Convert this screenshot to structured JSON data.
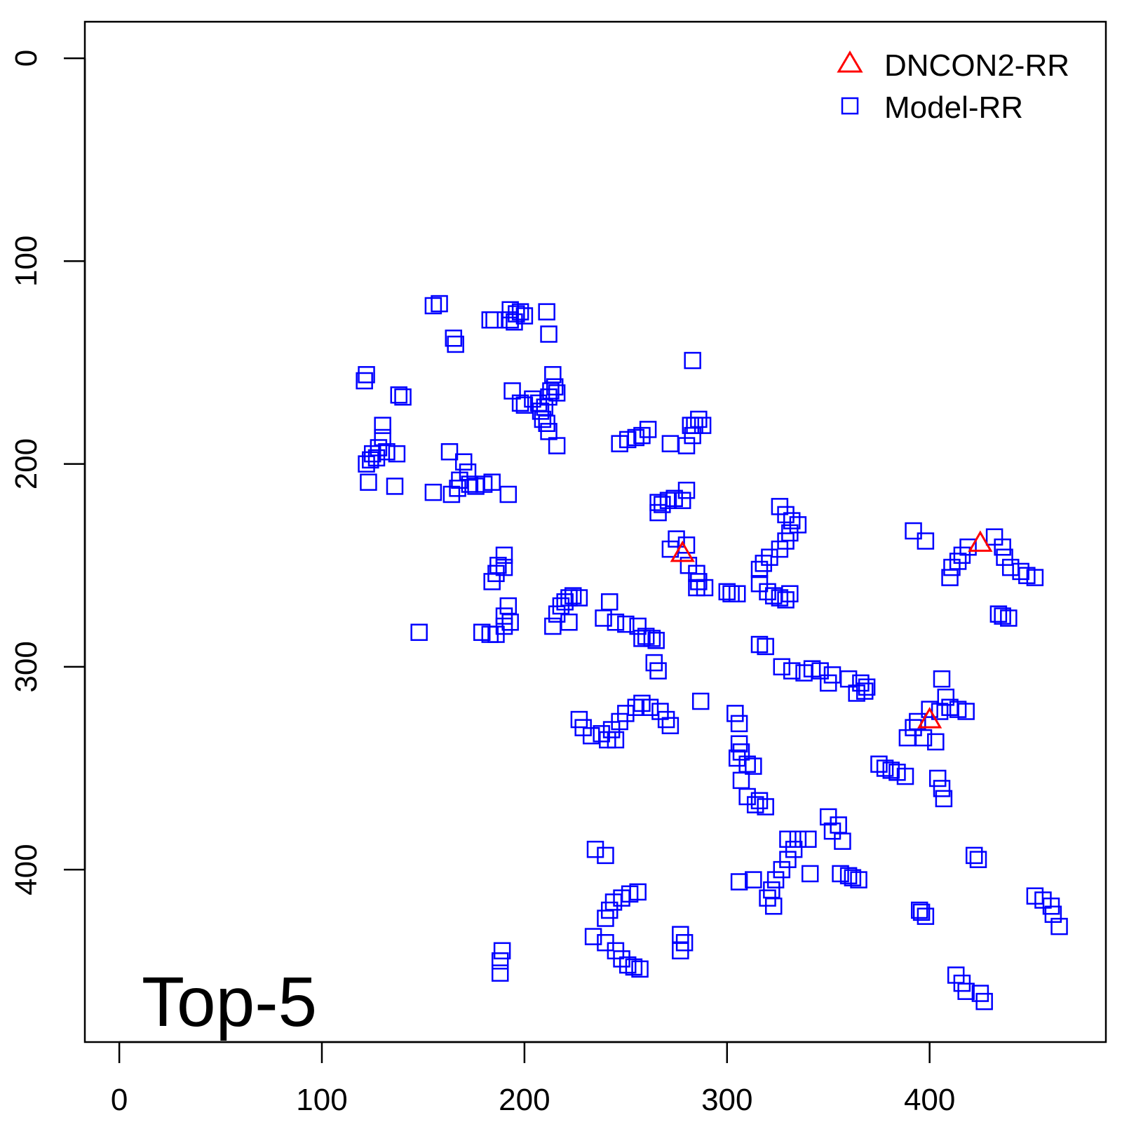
{
  "chart_data": {
    "type": "scatter",
    "title": "",
    "xlabel": "",
    "ylabel": "",
    "panel_label": "Top-5",
    "xlim": [
      -17,
      487
    ],
    "ylim": [
      485,
      -18
    ],
    "y_reversed": true,
    "x_ticks": [
      "0",
      "100",
      "200",
      "300",
      "400"
    ],
    "y_ticks": [
      "0",
      "100",
      "200",
      "300",
      "400"
    ],
    "grid": false,
    "legend_position": "top-right",
    "series": [
      {
        "name": "DNCON2-RR",
        "marker": "triangle",
        "color": "#ff0000",
        "points": [
          [
            278,
            244
          ],
          [
            400,
            326
          ],
          [
            425,
            239
          ]
        ]
      },
      {
        "name": "Model-RR",
        "marker": "square",
        "color": "#0000ff",
        "points": [
          [
            155,
            122
          ],
          [
            158,
            121
          ],
          [
            183,
            129
          ],
          [
            185,
            129
          ],
          [
            193,
            129
          ],
          [
            195,
            130
          ],
          [
            196,
            126
          ],
          [
            198,
            125
          ],
          [
            200,
            127
          ],
          [
            193,
            124
          ],
          [
            211,
            125
          ],
          [
            212,
            136
          ],
          [
            165,
            138
          ],
          [
            166,
            141
          ],
          [
            283,
            149
          ],
          [
            122,
            156
          ],
          [
            121,
            159
          ],
          [
            138,
            166
          ],
          [
            140,
            167
          ],
          [
            194,
            164
          ],
          [
            198,
            170
          ],
          [
            200,
            171
          ],
          [
            204,
            168
          ],
          [
            207,
            170
          ],
          [
            208,
            174
          ],
          [
            210,
            172
          ],
          [
            212,
            167
          ],
          [
            213,
            164
          ],
          [
            215,
            162
          ],
          [
            216,
            165
          ],
          [
            214,
            156
          ],
          [
            211,
            180
          ],
          [
            212,
            184
          ],
          [
            216,
            191
          ],
          [
            209,
            178
          ],
          [
            130,
            181
          ],
          [
            130,
            187
          ],
          [
            128,
            192
          ],
          [
            125,
            195
          ],
          [
            122,
            200
          ],
          [
            124,
            198
          ],
          [
            127,
            197
          ],
          [
            132,
            194
          ],
          [
            137,
            195
          ],
          [
            123,
            209
          ],
          [
            136,
            211
          ],
          [
            163,
            194
          ],
          [
            170,
            199
          ],
          [
            172,
            204
          ],
          [
            168,
            208
          ],
          [
            167,
            212
          ],
          [
            164,
            215
          ],
          [
            155,
            214
          ],
          [
            176,
            211
          ],
          [
            180,
            210
          ],
          [
            184,
            209
          ],
          [
            192,
            215
          ],
          [
            173,
            210
          ],
          [
            247,
            190
          ],
          [
            251,
            188
          ],
          [
            255,
            187
          ],
          [
            258,
            186
          ],
          [
            261,
            183
          ],
          [
            280,
            191
          ],
          [
            283,
            186
          ],
          [
            284,
            181
          ],
          [
            286,
            178
          ],
          [
            288,
            181
          ],
          [
            272,
            190
          ],
          [
            282,
            181
          ],
          [
            266,
            219
          ],
          [
            268,
            220
          ],
          [
            271,
            218
          ],
          [
            274,
            217
          ],
          [
            278,
            218
          ],
          [
            280,
            213
          ],
          [
            266,
            224
          ],
          [
            326,
            221
          ],
          [
            329,
            225
          ],
          [
            332,
            228
          ],
          [
            335,
            230
          ],
          [
            331,
            234
          ],
          [
            329,
            238
          ],
          [
            326,
            242
          ],
          [
            321,
            246
          ],
          [
            318,
            249
          ],
          [
            316,
            252
          ],
          [
            316,
            259
          ],
          [
            320,
            263
          ],
          [
            323,
            265
          ],
          [
            326,
            266
          ],
          [
            329,
            267
          ],
          [
            331,
            264
          ],
          [
            275,
            237
          ],
          [
            280,
            240
          ],
          [
            272,
            242
          ],
          [
            281,
            250
          ],
          [
            285,
            254
          ],
          [
            286,
            258
          ],
          [
            285,
            261
          ],
          [
            289,
            261
          ],
          [
            300,
            263
          ],
          [
            302,
            264
          ],
          [
            305,
            264
          ],
          [
            392,
            233
          ],
          [
            398,
            238
          ],
          [
            432,
            236
          ],
          [
            436,
            241
          ],
          [
            437,
            246
          ],
          [
            440,
            251
          ],
          [
            445,
            253
          ],
          [
            448,
            255
          ],
          [
            452,
            256
          ],
          [
            419,
            241
          ],
          [
            416,
            245
          ],
          [
            414,
            248
          ],
          [
            411,
            251
          ],
          [
            410,
            256
          ],
          [
            434,
            274
          ],
          [
            436,
            275
          ],
          [
            439,
            276
          ],
          [
            190,
            245
          ],
          [
            187,
            250
          ],
          [
            186,
            254
          ],
          [
            184,
            258
          ],
          [
            190,
            251
          ],
          [
            192,
            270
          ],
          [
            190,
            275
          ],
          [
            193,
            278
          ],
          [
            190,
            280
          ],
          [
            148,
            283
          ],
          [
            179,
            283
          ],
          [
            183,
            284
          ],
          [
            186,
            284
          ],
          [
            214,
            280
          ],
          [
            216,
            274
          ],
          [
            218,
            270
          ],
          [
            220,
            268
          ],
          [
            222,
            266
          ],
          [
            224,
            265
          ],
          [
            227,
            266
          ],
          [
            222,
            278
          ],
          [
            242,
            268
          ],
          [
            239,
            276
          ],
          [
            245,
            278
          ],
          [
            250,
            279
          ],
          [
            256,
            280
          ],
          [
            260,
            285
          ],
          [
            263,
            286
          ],
          [
            265,
            287
          ],
          [
            258,
            286
          ],
          [
            264,
            298
          ],
          [
            266,
            302
          ],
          [
            316,
            289
          ],
          [
            319,
            290
          ],
          [
            332,
            302
          ],
          [
            338,
            303
          ],
          [
            342,
            301
          ],
          [
            346,
            302
          ],
          [
            352,
            304
          ],
          [
            360,
            306
          ],
          [
            366,
            308
          ],
          [
            368,
            312
          ],
          [
            364,
            313
          ],
          [
            369,
            310
          ],
          [
            350,
            308
          ],
          [
            327,
            300
          ],
          [
            287,
            317
          ],
          [
            304,
            323
          ],
          [
            306,
            328
          ],
          [
            306,
            338
          ],
          [
            307,
            342
          ],
          [
            305,
            345
          ],
          [
            310,
            348
          ],
          [
            313,
            349
          ],
          [
            310,
            364
          ],
          [
            314,
            368
          ],
          [
            319,
            369
          ],
          [
            316,
            366
          ],
          [
            307,
            356
          ],
          [
            227,
            326
          ],
          [
            229,
            330
          ],
          [
            233,
            334
          ],
          [
            238,
            333
          ],
          [
            243,
            331
          ],
          [
            247,
            327
          ],
          [
            250,
            323
          ],
          [
            255,
            320
          ],
          [
            258,
            318
          ],
          [
            262,
            320
          ],
          [
            267,
            322
          ],
          [
            270,
            326
          ],
          [
            272,
            329
          ],
          [
            245,
            336
          ],
          [
            241,
            336
          ],
          [
            400,
            321
          ],
          [
            405,
            322
          ],
          [
            408,
            315
          ],
          [
            406,
            306
          ],
          [
            410,
            320
          ],
          [
            414,
            321
          ],
          [
            418,
            322
          ],
          [
            397,
            335
          ],
          [
            403,
            337
          ],
          [
            392,
            330
          ],
          [
            394,
            327
          ],
          [
            389,
            335
          ],
          [
            375,
            348
          ],
          [
            378,
            350
          ],
          [
            381,
            351
          ],
          [
            384,
            352
          ],
          [
            388,
            354
          ],
          [
            404,
            355
          ],
          [
            406,
            360
          ],
          [
            407,
            365
          ],
          [
            350,
            374
          ],
          [
            355,
            378
          ],
          [
            352,
            381
          ],
          [
            357,
            386
          ],
          [
            356,
            402
          ],
          [
            360,
            403
          ],
          [
            362,
            404
          ],
          [
            365,
            405
          ],
          [
            330,
            385
          ],
          [
            335,
            385
          ],
          [
            340,
            385
          ],
          [
            333,
            390
          ],
          [
            330,
            395
          ],
          [
            327,
            400
          ],
          [
            324,
            405
          ],
          [
            322,
            410
          ],
          [
            320,
            414
          ],
          [
            323,
            418
          ],
          [
            341,
            402
          ],
          [
            306,
            406
          ],
          [
            313,
            405
          ],
          [
            235,
            390
          ],
          [
            240,
            393
          ],
          [
            422,
            393
          ],
          [
            424,
            395
          ],
          [
            396,
            421
          ],
          [
            398,
            423
          ],
          [
            395,
            420
          ],
          [
            256,
            411
          ],
          [
            252,
            412
          ],
          [
            248,
            414
          ],
          [
            244,
            416
          ],
          [
            242,
            420
          ],
          [
            240,
            424
          ],
          [
            234,
            433
          ],
          [
            240,
            436
          ],
          [
            245,
            440
          ],
          [
            248,
            444
          ],
          [
            251,
            447
          ],
          [
            254,
            448
          ],
          [
            257,
            449
          ],
          [
            277,
            432
          ],
          [
            279,
            436
          ],
          [
            277,
            440
          ],
          [
            189,
            440
          ],
          [
            188,
            445
          ],
          [
            188,
            451
          ],
          [
            452,
            413
          ],
          [
            456,
            415
          ],
          [
            460,
            418
          ],
          [
            461,
            422
          ],
          [
            464,
            428
          ],
          [
            413,
            452
          ],
          [
            416,
            456
          ],
          [
            418,
            460
          ],
          [
            425,
            461
          ],
          [
            427,
            465
          ]
        ]
      }
    ]
  }
}
